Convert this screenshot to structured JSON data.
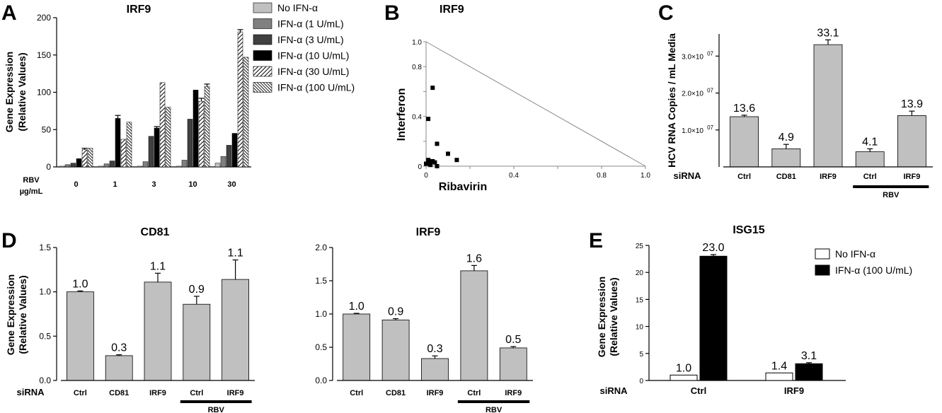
{
  "panels": {
    "A": {
      "letter": "A"
    },
    "B": {
      "letter": "B"
    },
    "C": {
      "letter": "C"
    },
    "D": {
      "letter": "D"
    },
    "E": {
      "letter": "E"
    }
  },
  "colors": {
    "gray": "#c0c0c0",
    "dark_gray": "#808080",
    "charcoal": "#404040",
    "black": "#000000",
    "white": "#ffffff"
  },
  "chart_data": [
    {
      "id": "A",
      "type": "bar",
      "title": "IRF9",
      "ylabel_lines": [
        "Gene Expression",
        "(Relative Values)"
      ],
      "xlabel_lines": [
        "RBV",
        "µg/mL"
      ],
      "categories": [
        "0",
        "1",
        "3",
        "10",
        "30"
      ],
      "ylim": [
        0,
        200
      ],
      "yticks": [
        0,
        50,
        100,
        150,
        200
      ],
      "series": [
        {
          "name": "No IFN-α",
          "fill": "#c0c0c0",
          "values": [
            1,
            1,
            1,
            1,
            5
          ],
          "err": [
            0,
            0,
            0,
            0,
            0
          ]
        },
        {
          "name": "IFN-α (1 U/mL)",
          "fill": "#808080",
          "values": [
            3,
            4,
            7,
            9,
            14
          ],
          "err": [
            0,
            0,
            0,
            0,
            0
          ]
        },
        {
          "name": "IFN-α (3 U/mL)",
          "fill": "#404040",
          "values": [
            5,
            8,
            41,
            64,
            29
          ],
          "err": [
            0,
            0,
            0,
            0,
            0
          ]
        },
        {
          "name": "IFN-α (10 U/mL)",
          "fill": "#000000",
          "values": [
            11,
            65,
            52,
            103,
            45
          ],
          "err": [
            0,
            4,
            2,
            0,
            0
          ]
        },
        {
          "name": "IFN-α (30 U/mL)",
          "fill": "hatch-sparse",
          "values": [
            23,
            37,
            113,
            88,
            181
          ],
          "err": [
            2,
            0,
            0,
            4,
            3
          ]
        },
        {
          "name": "IFN-α (100 U/mL)",
          "fill": "hatch-dense",
          "values": [
            25,
            60,
            80,
            108,
            147
          ],
          "err": [
            0,
            0,
            0,
            3,
            0
          ]
        }
      ],
      "grid": false,
      "legend": "right"
    },
    {
      "id": "B",
      "type": "scatter",
      "title": "IRF9",
      "xlabel": "Ribavirin",
      "ylabel": "Interferon",
      "xlim": [
        0,
        1.0
      ],
      "ylim": [
        0,
        1.0
      ],
      "xticks": [
        "0",
        "0.4",
        "0.8",
        "1.0"
      ],
      "xtick_vals": [
        0,
        0.4,
        0.8,
        1.0
      ],
      "yticks": [
        "0",
        "0.4",
        "0.8",
        "1.0"
      ],
      "ytick_vals": [
        0,
        0.4,
        0.8,
        1.0
      ],
      "extra_xticks": [
        0.2,
        0.6
      ],
      "extra_yticks": [
        0.2,
        0.6
      ],
      "additivity_line": [
        [
          0,
          1.0
        ],
        [
          1.0,
          0
        ]
      ],
      "x": [
        0.03,
        0.01,
        0.05,
        0.1,
        0.14,
        0.01,
        0.02,
        0.03,
        0.04,
        0.0,
        0.02,
        0.05,
        0.01
      ],
      "y": [
        0.63,
        0.38,
        0.18,
        0.1,
        0.05,
        0.05,
        0.04,
        0.04,
        0.03,
        0.02,
        0.01,
        0.0,
        0.02
      ],
      "grid": false
    },
    {
      "id": "C",
      "type": "bar",
      "ylabel": "HCV RNA Copies / mL Media",
      "categories": [
        "Ctrl",
        "CD81",
        "IRF9",
        "Ctrl",
        "IRF9"
      ],
      "values": [
        13.6,
        4.9,
        33.1,
        4.1,
        13.9
      ],
      "err": [
        0.4,
        1.2,
        1.3,
        0.8,
        1.2
      ],
      "data_labels": [
        "13.6",
        "4.9",
        "33.1",
        "4.1",
        "13.9"
      ],
      "ylim": [
        0,
        36
      ],
      "ytick_vals": [
        10,
        20,
        30
      ],
      "ytick_mant": [
        "1.0×10",
        "2.0×10",
        "3.0×10"
      ],
      "ytick_exp": "07",
      "sirna_label": "siRNA",
      "bracket_label": "RBV",
      "bracket_over": [
        3,
        4
      ],
      "fill": "#c0c0c0"
    },
    {
      "id": "D1",
      "type": "bar",
      "title": "CD81",
      "ylabel_lines": [
        "Gene Expression",
        "(Relative Values)"
      ],
      "categories": [
        "Ctrl",
        "CD81",
        "IRF9",
        "Ctrl",
        "IRF9"
      ],
      "values": [
        1.0,
        0.28,
        1.11,
        0.86,
        1.14
      ],
      "err": [
        0.01,
        0.01,
        0.1,
        0.09,
        0.22
      ],
      "data_labels": [
        "1.0",
        "0.3",
        "1.1",
        "0.9",
        "1.1"
      ],
      "ylim": [
        0,
        1.5
      ],
      "ytick_vals": [
        0,
        0.5,
        1.0,
        1.5
      ],
      "yticks": [
        "0.0",
        "0.5",
        "1.0",
        "1.5"
      ],
      "sirna_label": "siRNA",
      "bracket_label": "RBV",
      "bracket_over": [
        3,
        4
      ],
      "fill": "#c0c0c0"
    },
    {
      "id": "D2",
      "type": "bar",
      "title": "IRF9",
      "categories": [
        "Ctrl",
        "CD81",
        "IRF9",
        "Ctrl",
        "IRF9"
      ],
      "values": [
        1.0,
        0.91,
        0.33,
        1.65,
        0.49
      ],
      "err": [
        0.01,
        0.02,
        0.04,
        0.08,
        0.02
      ],
      "data_labels": [
        "1.0",
        "0.9",
        "0.3",
        "1.6",
        "0.5"
      ],
      "ylim": [
        0,
        2.0
      ],
      "ytick_vals": [
        0,
        0.5,
        1.0,
        1.5,
        2.0
      ],
      "yticks": [
        "0.0",
        "0.5",
        "1.0",
        "1.5",
        "2.0"
      ],
      "bracket_label": "RBV",
      "bracket_over": [
        3,
        4
      ],
      "fill": "#c0c0c0"
    },
    {
      "id": "E",
      "type": "bar",
      "title": "ISG15",
      "ylabel_lines": [
        "Gene Expression",
        "(Relative Values)"
      ],
      "categories": [
        "Ctrl",
        "IRF9"
      ],
      "series": [
        {
          "name": "No IFN-α",
          "fill": "#ffffff",
          "values": [
            1.0,
            1.4
          ],
          "err": [
            0,
            0
          ],
          "data_labels": [
            "1.0",
            "1.4"
          ]
        },
        {
          "name": "IFN-α (100 U/mL)",
          "fill": "#000000",
          "values": [
            23.0,
            3.1
          ],
          "err": [
            0.3,
            0.2
          ],
          "data_labels": [
            "23.0",
            "3.1"
          ]
        }
      ],
      "ylim": [
        0,
        25
      ],
      "ytick_vals": [
        0,
        5,
        10,
        15,
        20,
        25
      ],
      "yticks": [
        "0",
        "5",
        "10",
        "15",
        "20",
        "25"
      ],
      "sirna_label": "siRNA",
      "legend": "top-right"
    }
  ]
}
